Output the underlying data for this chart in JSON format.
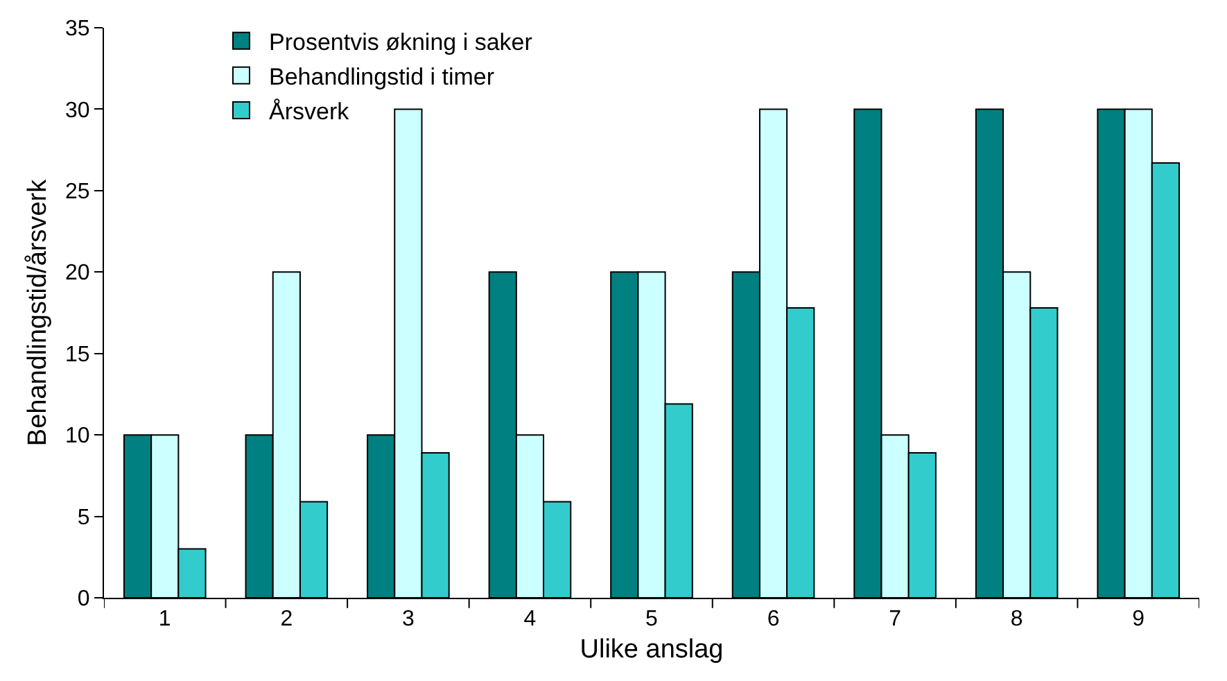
{
  "chart_data": {
    "type": "bar",
    "xlabel": "Ulike anslag",
    "ylabel": "Behandlingstid/årsverk",
    "categories": [
      "1",
      "2",
      "3",
      "4",
      "5",
      "6",
      "7",
      "8",
      "9"
    ],
    "series": [
      {
        "name": "Prosentvis økning i saker",
        "color": "#008080",
        "values": [
          10,
          10,
          10,
          20,
          20,
          20,
          30,
          30,
          30
        ]
      },
      {
        "name": "Behandlingstid i timer",
        "color": "#ccffff",
        "values": [
          10,
          20,
          30,
          10,
          20,
          30,
          10,
          20,
          30
        ]
      },
      {
        "name": "Årsverk",
        "color": "#33cccc",
        "values": [
          3,
          5.9,
          8.9,
          5.9,
          11.9,
          17.8,
          8.9,
          17.8,
          26.7
        ]
      }
    ],
    "ylim": [
      0,
      35
    ],
    "yticks": [
      0,
      5,
      10,
      15,
      20,
      25,
      30,
      35
    ],
    "legend": "top left"
  }
}
